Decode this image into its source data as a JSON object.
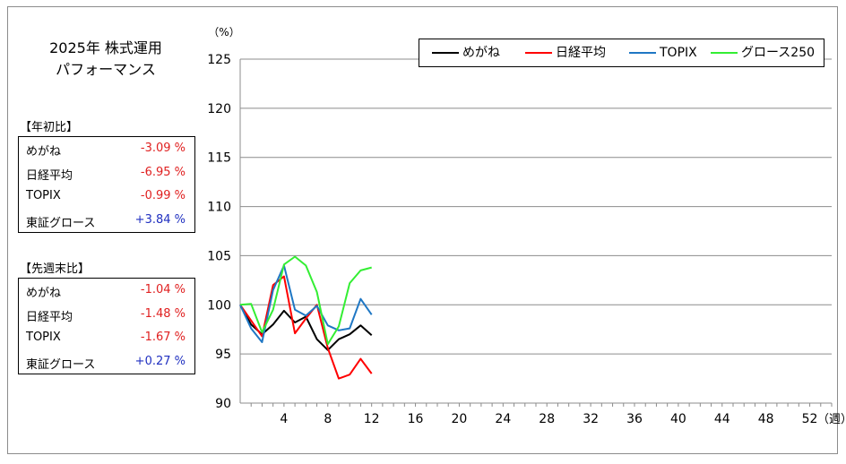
{
  "title_line1": "2025年 株式運用",
  "title_line2": "パフォーマンス",
  "ytd": {
    "label": "【年初比】",
    "rows": [
      {
        "name": "めがね",
        "value": "-3.09 %"
      },
      {
        "name": "日経平均",
        "value": "-6.95 %"
      },
      {
        "name": "TOPIX",
        "value": "-0.99 %"
      },
      {
        "name": "東証グロース",
        "value": "+3.84 %"
      }
    ]
  },
  "wow": {
    "label": "【先週末比】",
    "rows": [
      {
        "name": "めがね",
        "value": "-1.04 %"
      },
      {
        "name": "日経平均",
        "value": "-1.48 %"
      },
      {
        "name": "TOPIX",
        "value": "-1.67 %"
      },
      {
        "name": "東証グロース",
        "value": "+0.27 %"
      }
    ]
  },
  "colors": {
    "neg": "#e02020",
    "pos": "#2030c0"
  },
  "chart_data": {
    "type": "line",
    "ylabel": "（%）",
    "xlabel": "（週）",
    "ylim": [
      90,
      125
    ],
    "yticks": [
      90,
      95,
      100,
      105,
      110,
      115,
      120,
      125
    ],
    "xlim": [
      0,
      54
    ],
    "xticks": [
      4,
      8,
      12,
      16,
      20,
      24,
      28,
      32,
      36,
      40,
      44,
      48,
      52
    ],
    "grid": "horizontal",
    "legend_position": "top-right",
    "series": [
      {
        "name": "めがね",
        "color": "#000000",
        "x": [
          0,
          1,
          2,
          3,
          4,
          5,
          6,
          7,
          8,
          9,
          10,
          11,
          12
        ],
        "y": [
          100,
          98.0,
          97.0,
          98.0,
          99.4,
          98.2,
          98.8,
          96.5,
          95.4,
          96.5,
          97.0,
          97.9,
          96.9
        ]
      },
      {
        "name": "日経平均",
        "color": "#ff0000",
        "x": [
          0,
          1,
          2,
          3,
          4,
          5,
          6,
          7,
          8,
          9,
          10,
          11,
          12
        ],
        "y": [
          100,
          98.4,
          96.8,
          102.0,
          102.9,
          97.1,
          98.6,
          100.0,
          95.6,
          92.5,
          92.9,
          94.5,
          93.0
        ]
      },
      {
        "name": "TOPIX",
        "color": "#1f77c4",
        "x": [
          0,
          1,
          2,
          3,
          4,
          5,
          6,
          7,
          8,
          9,
          10,
          11,
          12
        ],
        "y": [
          100,
          97.6,
          96.2,
          101.5,
          104.0,
          99.5,
          98.9,
          99.9,
          97.9,
          97.4,
          97.6,
          100.6,
          99.0
        ]
      },
      {
        "name": "グロース250",
        "color": "#33ee33",
        "x": [
          0,
          1,
          2,
          3,
          4,
          5,
          6,
          7,
          8,
          9,
          10,
          11,
          12
        ],
        "y": [
          100,
          100.1,
          97.2,
          99.5,
          104.1,
          104.9,
          104.0,
          101.3,
          96.0,
          97.8,
          102.2,
          103.5,
          103.8
        ]
      }
    ]
  }
}
